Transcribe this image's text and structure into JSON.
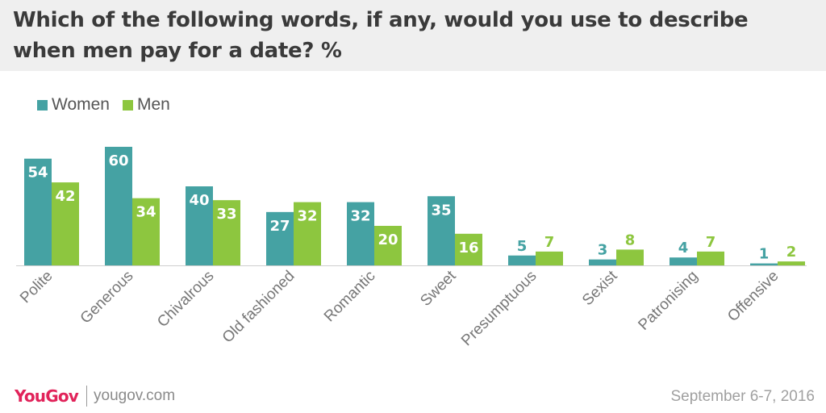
{
  "title": "Which of the following words, if any, would you use to describe when men pay for a date? %",
  "colors": {
    "women": "#45a2a3",
    "men": "#8dc63f",
    "baseline": "#cfcfcf"
  },
  "legend": [
    {
      "label": "Women",
      "color": "#45a2a3"
    },
    {
      "label": "Men",
      "color": "#8dc63f"
    }
  ],
  "chart_data": {
    "type": "bar",
    "title": "Which of the following words, if any, would you use to describe when men pay for a date? %",
    "categories": [
      "Polite",
      "Generous",
      "Chivalrous",
      "Old fashioned",
      "Romantic",
      "Sweet",
      "Presumptuous",
      "Sexist",
      "Patronising",
      "Offensive"
    ],
    "series": [
      {
        "name": "Women",
        "color": "#45a2a3",
        "values": [
          54,
          60,
          40,
          27,
          32,
          35,
          5,
          3,
          4,
          1
        ]
      },
      {
        "name": "Men",
        "color": "#8dc63f",
        "values": [
          42,
          34,
          33,
          32,
          20,
          16,
          7,
          8,
          7,
          2
        ]
      }
    ],
    "xlabel": "",
    "ylabel": "",
    "ylim": [
      0,
      60
    ],
    "grid": false,
    "legend_position": "top-left",
    "data_labels": true
  },
  "footer": {
    "logo": "YouGov",
    "site": "yougov.com",
    "date": "September 6-7, 2016"
  }
}
